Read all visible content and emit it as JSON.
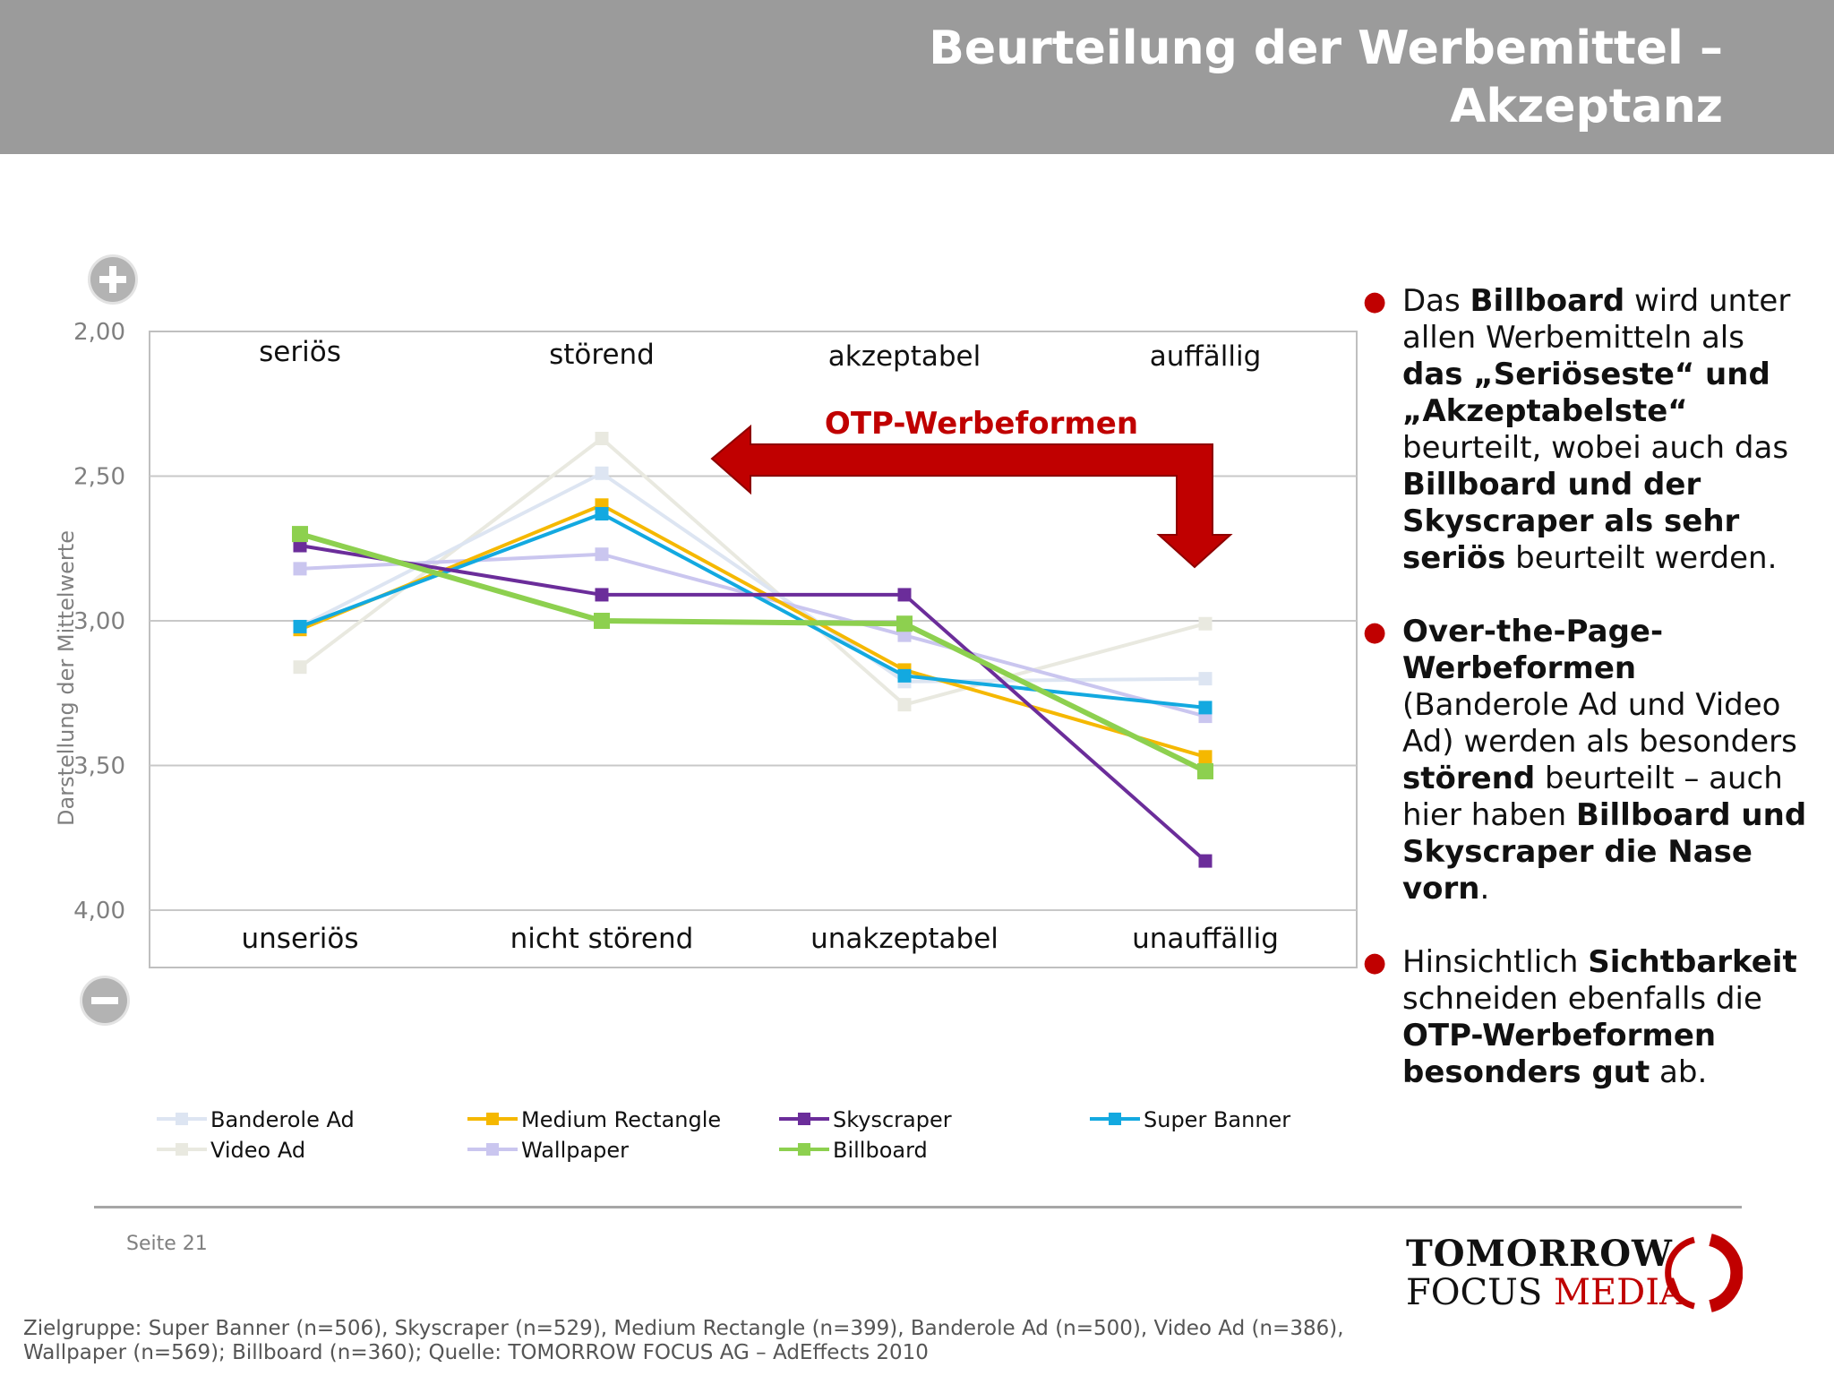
{
  "header": {
    "title_line1": "Beurteilung der Werbemittel –",
    "title_line2": "Akzeptanz"
  },
  "chart_data": {
    "type": "line",
    "ylabel": "Darstellung der Mittelwerte",
    "ylim": [
      4.0,
      2.0
    ],
    "y_reversed": true,
    "yticks": [
      "2,00",
      "2,50",
      "3,00",
      "3,50",
      "4,00"
    ],
    "ytick_values": [
      2.0,
      2.5,
      3.0,
      3.5,
      4.0
    ],
    "grid": true,
    "categories_top": [
      "seriös",
      "störend",
      "akzeptabel",
      "auffällig"
    ],
    "categories_bottom": [
      "unseriös",
      "nicht störend",
      "unakzeptabel",
      "unauffällig"
    ],
    "plus_icon": "plus-circle-icon",
    "minus_icon": "minus-circle-icon",
    "annotation": {
      "text": "OTP-Werbeformen",
      "color": "#c00000"
    },
    "legend_position": "bottom",
    "series": [
      {
        "name": "Banderole Ad",
        "color": "#dde5f2",
        "values": [
          3.02,
          2.49,
          3.21,
          3.2
        ]
      },
      {
        "name": "Medium Rectangle",
        "color": "#f5b800",
        "values": [
          3.03,
          2.6,
          3.17,
          3.47
        ]
      },
      {
        "name": "Skyscraper",
        "color": "#6b2d9a",
        "values": [
          2.74,
          2.91,
          2.91,
          3.83
        ]
      },
      {
        "name": "Super Banner",
        "color": "#13a9e0",
        "values": [
          3.02,
          2.63,
          3.19,
          3.3
        ]
      },
      {
        "name": "Video Ad",
        "color": "#e9e9e0",
        "values": [
          3.16,
          2.37,
          3.29,
          3.01
        ]
      },
      {
        "name": "Wallpaper",
        "color": "#cac6ef",
        "values": [
          2.82,
          2.77,
          3.05,
          3.33
        ]
      },
      {
        "name": "Billboard",
        "color": "#8dd04f",
        "values": [
          2.7,
          3.0,
          3.01,
          3.52
        ]
      }
    ]
  },
  "bullets": [
    [
      {
        "t": "Das ",
        "b": false
      },
      {
        "t": "Billboard",
        "b": true
      },
      {
        "t": " wird unter allen Werbemitteln als ",
        "b": false
      },
      {
        "t": "das „Seriöseste“ und „Akzeptabelste“",
        "b": true
      },
      {
        "t": " beurteilt, wobei auch das ",
        "b": false
      },
      {
        "t": "Billboard und der Skyscraper als sehr seriös",
        "b": true
      },
      {
        "t": " beurteilt werden.",
        "b": false
      }
    ],
    [
      {
        "t": "Over-the-Page-Werbeformen",
        "b": true
      },
      {
        "t": " (Banderole Ad und Video Ad) werden als besonders ",
        "b": false
      },
      {
        "t": "störend",
        "b": true
      },
      {
        "t": " beurteilt – auch hier haben ",
        "b": false
      },
      {
        "t": "Billboard und Skyscraper die Nase vorn",
        "b": true
      },
      {
        "t": ".",
        "b": false
      }
    ],
    [
      {
        "t": "Hinsichtlich ",
        "b": false
      },
      {
        "t": "Sichtbarkeit",
        "b": true
      },
      {
        "t": " schneiden ebenfalls die ",
        "b": false
      },
      {
        "t": "OTP-Werbeformen besonders gut",
        "b": true
      },
      {
        "t": " ab.",
        "b": false
      }
    ]
  ],
  "footer": {
    "page": "Seite 21",
    "note_line1": "Zielgruppe: Super Banner (n=506), Skyscraper (n=529), Medium Rectangle (n=399), Banderole Ad (n=500), Video Ad (n=386),",
    "note_line2": "Wallpaper (n=569); Billboard (n=360); Quelle: TOMORROW FOCUS AG – AdEffects 2010",
    "logo_line1": "TOMORROW",
    "logo_line2a": "FOCUS",
    "logo_line2b": "MEDIA"
  }
}
